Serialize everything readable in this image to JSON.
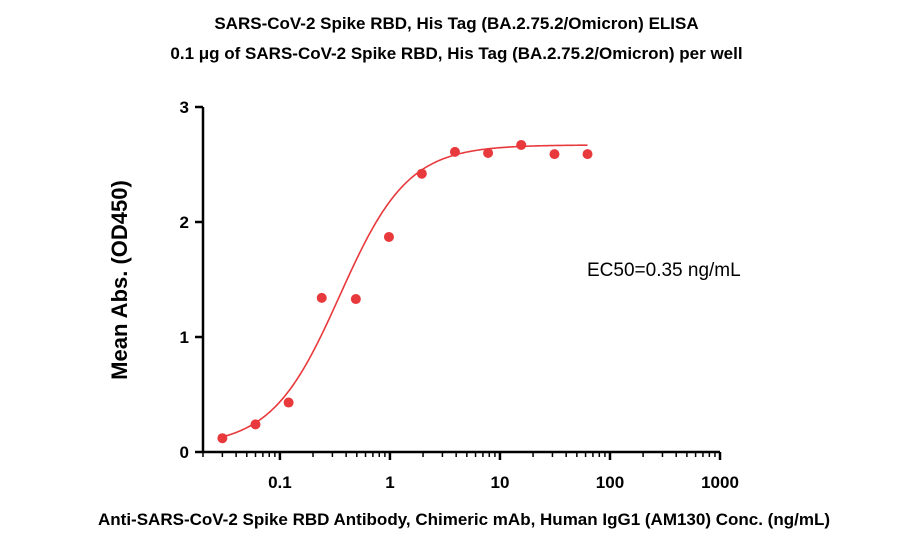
{
  "chart_data": {
    "type": "scatter",
    "title": "SARS-CoV-2 Spike RBD, His Tag (BA.2.75.2/Omicron) ELISA",
    "subtitle": "0.1 μg of SARS-CoV-2 Spike RBD, His Tag (BA.2.75.2/Omicron) per well",
    "xlabel": "Anti-SARS-CoV-2 Spike RBD Antibody, Chimeric mAb, Human IgG1 (AM130) Conc. (ng/mL)",
    "ylabel": "Mean Abs. (OD450)",
    "x_scale": "log",
    "xlim": [
      0.02,
      1000
    ],
    "ylim": [
      0,
      3
    ],
    "x_ticks": [
      0.1,
      1,
      10,
      100,
      1000
    ],
    "x_tick_labels": [
      "0.1",
      "1",
      "10",
      "100",
      "1000"
    ],
    "y_ticks": [
      0,
      1,
      2,
      3
    ],
    "y_tick_labels": [
      "0",
      "1",
      "2",
      "3"
    ],
    "grid": false,
    "points": {
      "x": [
        0.03,
        0.06,
        0.12,
        0.24,
        0.49,
        0.98,
        1.95,
        3.9,
        7.8,
        15.6,
        31.3,
        62.5
      ],
      "y": [
        0.12,
        0.24,
        0.43,
        1.34,
        1.33,
        1.87,
        2.42,
        2.61,
        2.6,
        2.67,
        2.59,
        2.59
      ]
    },
    "fit_curve": {
      "model": "4PL",
      "bottom": 0.05,
      "top": 2.67,
      "ec50": 0.35,
      "hill": 1.4,
      "x_range": [
        0.03,
        62.5
      ]
    },
    "annotation": "EC50=0.35 ng/mL",
    "color": "#e8393c"
  }
}
